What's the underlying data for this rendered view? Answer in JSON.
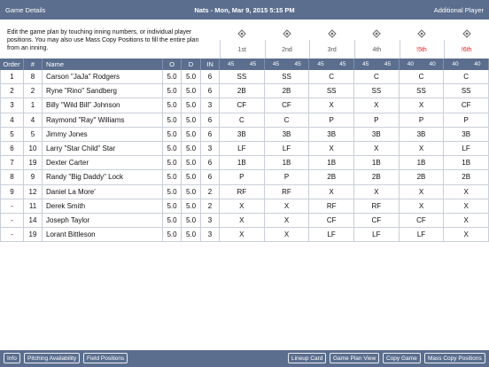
{
  "header": {
    "left": "Game Details",
    "title": "Nats - Mon, Mar 9, 2015 5:15 PM",
    "right": "Additional Player"
  },
  "instructions": "Edit the game plan by touching inning numbers, or individual player positions. You may also use Mass Copy Positions to fill the entire plan from an inning.",
  "innings": [
    {
      "label": "1st",
      "counts": [
        "45",
        "45"
      ],
      "color": "#555555"
    },
    {
      "label": "2nd",
      "counts": [
        "45",
        "45"
      ],
      "color": "#555555"
    },
    {
      "label": "3rd",
      "counts": [
        "45",
        "45"
      ],
      "color": "#555555"
    },
    {
      "label": "4th",
      "counts": [
        "45",
        "45"
      ],
      "color": "#555555"
    },
    {
      "label": "!5th",
      "counts": [
        "40",
        "40"
      ],
      "color": "#e0201e"
    },
    {
      "label": "!6th",
      "counts": [
        "40",
        "40"
      ],
      "color": "#e0201e"
    }
  ],
  "table": {
    "columns": [
      "Order",
      "#",
      "Name",
      "O",
      "D",
      "IN"
    ],
    "rows": [
      [
        "1",
        "8",
        "Carson \"JaJa\" Rodgers",
        "5.0",
        "5.0",
        "6",
        "SS",
        "SS",
        "C",
        "C",
        "C",
        "C"
      ],
      [
        "2",
        "2",
        "Ryne \"Rino\" Sandberg",
        "5.0",
        "5.0",
        "6",
        "2B",
        "2B",
        "SS",
        "SS",
        "SS",
        "SS"
      ],
      [
        "3",
        "1",
        "Billy \"Wild Bill\" Johnson",
        "5.0",
        "5.0",
        "3",
        "CF",
        "CF",
        "X",
        "X",
        "X",
        "CF"
      ],
      [
        "4",
        "4",
        "Raymond \"Ray\" Williams",
        "5.0",
        "5.0",
        "6",
        "C",
        "C",
        "P",
        "P",
        "P",
        "P"
      ],
      [
        "5",
        "5",
        "Jimmy Jones",
        "5.0",
        "5.0",
        "6",
        "3B",
        "3B",
        "3B",
        "3B",
        "3B",
        "3B"
      ],
      [
        "6",
        "10",
        "Larry \"Star Child\" Star",
        "5.0",
        "5.0",
        "3",
        "LF",
        "LF",
        "X",
        "X",
        "X",
        "LF"
      ],
      [
        "7",
        "19",
        "Dexter Carter",
        "5.0",
        "5.0",
        "6",
        "1B",
        "1B",
        "1B",
        "1B",
        "1B",
        "1B"
      ],
      [
        "8",
        "9",
        "Randy \"Big Daddy\" Lock",
        "5.0",
        "5.0",
        "6",
        "P",
        "P",
        "2B",
        "2B",
        "2B",
        "2B"
      ],
      [
        "9",
        "12",
        "Daniel La More'",
        "5.0",
        "5.0",
        "2",
        "RF",
        "RF",
        "X",
        "X",
        "X",
        "X"
      ],
      [
        "-",
        "11",
        "Derek Smith",
        "5.0",
        "5.0",
        "2",
        "X",
        "X",
        "RF",
        "RF",
        "X",
        "X"
      ],
      [
        "-",
        "14",
        "Joseph Taylor",
        "5.0",
        "5.0",
        "3",
        "X",
        "X",
        "CF",
        "CF",
        "CF",
        "X"
      ],
      [
        "-",
        "19",
        "Lorant Bittleson",
        "5.0",
        "5.0",
        "3",
        "X",
        "X",
        "LF",
        "LF",
        "LF",
        "X"
      ]
    ]
  },
  "footer": {
    "left_buttons": [
      "Info",
      "Pitching Availability",
      "Field Positions"
    ],
    "right_buttons": [
      "Lineup Card",
      "Game Plan View",
      "Copy Game",
      "Mass Copy Positions"
    ]
  }
}
